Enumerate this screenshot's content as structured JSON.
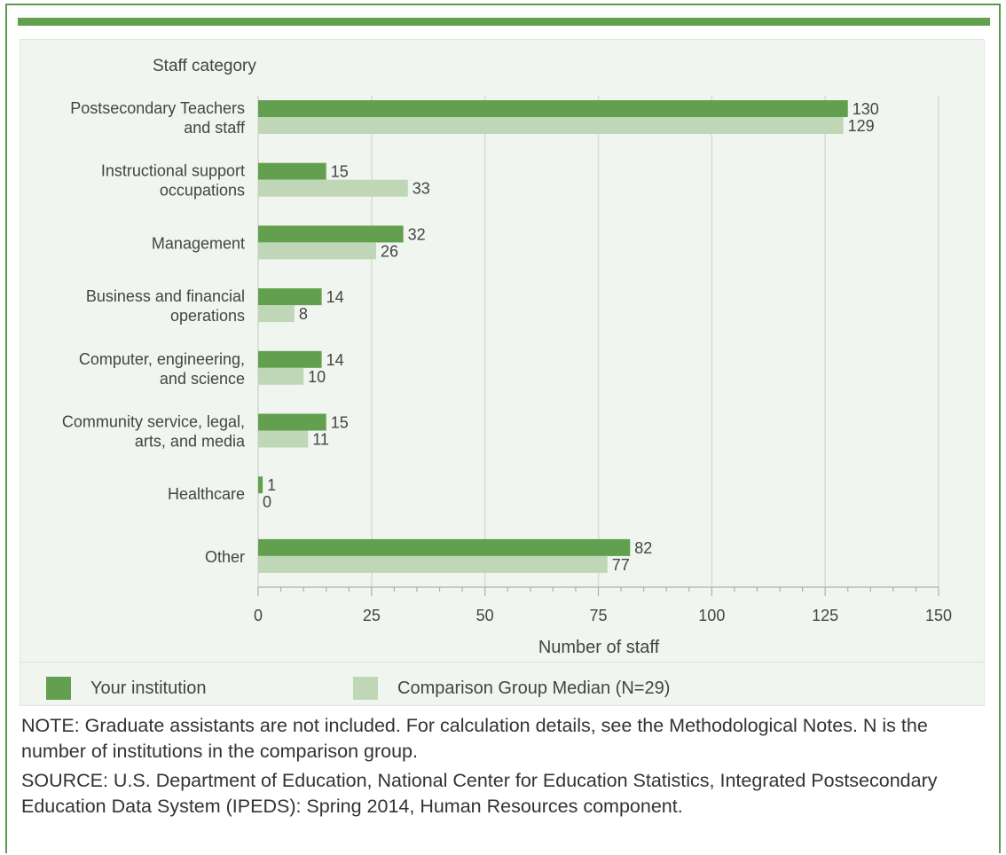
{
  "chart_data": {
    "type": "bar",
    "orientation": "horizontal",
    "ylabel": "Staff category",
    "xlabel": "Number of staff",
    "categories": [
      [
        "Postsecondary Teachers",
        "and staff"
      ],
      [
        "Instructional support",
        "occupations"
      ],
      [
        "Management"
      ],
      [
        "Business and financial",
        "operations"
      ],
      [
        "Computer, engineering,",
        "and science"
      ],
      [
        "Community service, legal,",
        "arts, and media"
      ],
      [
        "Healthcare"
      ],
      [
        "Other"
      ]
    ],
    "series": [
      {
        "name": "Your institution",
        "color": "#62a04f",
        "values": [
          130,
          15,
          32,
          14,
          14,
          15,
          1,
          82
        ]
      },
      {
        "name": "Comparison Group Median (N=29)",
        "color": "#bfd7b7",
        "values": [
          129,
          33,
          26,
          8,
          10,
          11,
          0,
          77
        ]
      }
    ],
    "xlim": [
      0,
      150
    ],
    "xticks": [
      0,
      25,
      50,
      75,
      100,
      125,
      150
    ],
    "grid": true,
    "legend_position": "bottom"
  },
  "legend": {
    "items": [
      {
        "label": "Your institution",
        "color": "#62a04f"
      },
      {
        "label": "Comparison Group Median (N=29)",
        "color": "#bfd7b7"
      }
    ]
  },
  "notes": {
    "note": "NOTE: Graduate assistants are not included. For calculation details, see the Methodological Notes. N is the number of institutions in the comparison group.",
    "source": "SOURCE: U.S. Department of Education, National Center for Education Statistics, Integrated Postsecondary Education Data System (IPEDS): Spring 2014, Human Resources component."
  }
}
